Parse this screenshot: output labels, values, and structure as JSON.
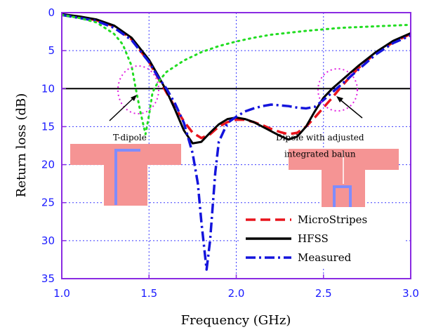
{
  "chart_data": {
    "type": "line",
    "xlabel": "Frequency (GHz)",
    "ylabel": "Return loss (dB)",
    "xlim": [
      1.0,
      3.0
    ],
    "ylim": [
      0,
      35
    ],
    "y_inverted": true,
    "x_ticks": [
      1.0,
      1.5,
      2.0,
      2.5,
      3.0
    ],
    "x_tick_labels": [
      "1.0",
      "1.5",
      "2.0",
      "2.5",
      "3.0"
    ],
    "y_ticks": [
      0,
      5,
      10,
      15,
      20,
      25,
      30,
      35
    ],
    "y_tick_labels": [
      "0",
      "5",
      "10",
      "15",
      "20",
      "25",
      "30",
      "35"
    ],
    "grid": true,
    "legend_position": "bottom-right",
    "reference_line": {
      "y": 10,
      "color": "#000000"
    },
    "colors": {
      "frame": "#8a2be2",
      "tick_text": "#1a1aff",
      "grid": "#3a3aff",
      "ellipse": "#e020e0",
      "patch": "#f59494",
      "feed": "#7f8cff"
    },
    "series": [
      {
        "name": "MicroStripes",
        "color": "#e8141c",
        "style": "dashed",
        "x": [
          1.0,
          1.1,
          1.2,
          1.3,
          1.4,
          1.5,
          1.55,
          1.6,
          1.65,
          1.7,
          1.75,
          1.8,
          1.85,
          1.9,
          1.95,
          2.0,
          2.05,
          2.1,
          2.15,
          2.2,
          2.25,
          2.3,
          2.35,
          2.4,
          2.45,
          2.5,
          2.55,
          2.6,
          2.65,
          2.7,
          2.8,
          2.9,
          3.0
        ],
        "y": [
          0.3,
          0.6,
          1.0,
          1.8,
          3.5,
          6.5,
          8.5,
          10.5,
          12.5,
          14.3,
          15.8,
          16.5,
          16.0,
          15.0,
          14.4,
          14.1,
          14.1,
          14.4,
          14.8,
          15.3,
          15.7,
          16.0,
          15.8,
          15.0,
          13.8,
          12.5,
          11.2,
          9.8,
          8.5,
          7.3,
          5.3,
          3.9,
          2.8
        ]
      },
      {
        "name": "HFSS",
        "color": "#000000",
        "style": "solid",
        "x": [
          1.0,
          1.1,
          1.2,
          1.3,
          1.4,
          1.5,
          1.55,
          1.6,
          1.65,
          1.7,
          1.75,
          1.8,
          1.85,
          1.9,
          1.95,
          2.0,
          2.05,
          2.1,
          2.15,
          2.2,
          2.25,
          2.3,
          2.35,
          2.4,
          2.45,
          2.5,
          2.55,
          2.6,
          2.65,
          2.7,
          2.8,
          2.9,
          3.0
        ],
        "y": [
          0.2,
          0.5,
          0.9,
          1.7,
          3.3,
          6.2,
          8.2,
          10.3,
          12.8,
          15.5,
          17.2,
          17.0,
          15.8,
          14.7,
          14.0,
          13.8,
          14.0,
          14.4,
          15.0,
          15.6,
          16.2,
          16.7,
          16.3,
          15.0,
          13.0,
          11.2,
          10.0,
          9.0,
          8.0,
          7.0,
          5.2,
          3.7,
          2.7
        ]
      },
      {
        "name": "Measured",
        "color": "#1414dc",
        "style": "dashdot",
        "x": [
          1.0,
          1.1,
          1.2,
          1.3,
          1.4,
          1.5,
          1.55,
          1.6,
          1.65,
          1.7,
          1.75,
          1.78,
          1.8,
          1.83,
          1.85,
          1.88,
          1.9,
          1.95,
          2.0,
          2.05,
          2.1,
          2.15,
          2.2,
          2.25,
          2.3,
          2.35,
          2.4,
          2.45,
          2.5,
          2.55,
          2.6,
          2.65,
          2.7,
          2.8,
          2.9,
          3.0
        ],
        "y": [
          0.3,
          0.7,
          1.1,
          2.0,
          3.6,
          6.5,
          8.4,
          10.0,
          12.0,
          14.5,
          18.5,
          22.5,
          27.5,
          33.8,
          30.0,
          21.0,
          17.0,
          14.5,
          13.7,
          13.0,
          12.6,
          12.3,
          12.1,
          12.2,
          12.3,
          12.5,
          12.6,
          12.4,
          11.5,
          10.5,
          9.5,
          8.5,
          7.5,
          5.5,
          4.0,
          3.0
        ]
      },
      {
        "name": "",
        "color": "#22dd22",
        "style": "dotted",
        "x": [
          1.0,
          1.1,
          1.2,
          1.3,
          1.35,
          1.4,
          1.42,
          1.45,
          1.48,
          1.5,
          1.52,
          1.55,
          1.6,
          1.7,
          1.8,
          1.9,
          2.0,
          2.1,
          2.2,
          2.4,
          2.6,
          2.8,
          3.0
        ],
        "y": [
          0.3,
          0.7,
          1.3,
          2.8,
          4.2,
          7.0,
          9.5,
          13.0,
          16.0,
          13.5,
          10.5,
          9.2,
          7.8,
          6.3,
          5.2,
          4.4,
          3.8,
          3.3,
          2.9,
          2.4,
          2.0,
          1.8,
          1.6
        ]
      }
    ],
    "annotations": [
      {
        "text": "T-dipole",
        "x": 1.39,
        "y": 16.8
      },
      {
        "text": "Dipole with adjusted",
        "x": 2.48,
        "y": 16.8
      },
      {
        "text": "integrated balun",
        "x": 2.48,
        "y": 19.0
      }
    ]
  }
}
